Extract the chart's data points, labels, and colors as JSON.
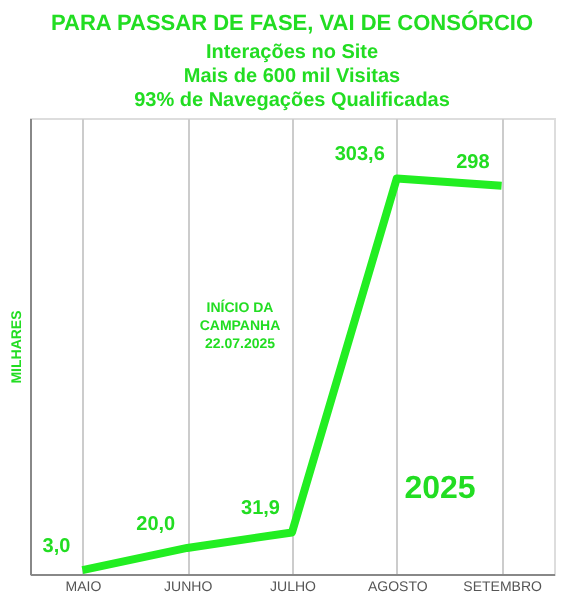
{
  "chart_data": {
    "type": "line",
    "title": "PARA PASSAR DE FASE, VAI DE CONSÓRCIO",
    "subtitle": [
      "Interações no Site",
      "Mais de 600 mil Visitas",
      "93% de Navegações Qualificadas"
    ],
    "ylabel": "MILHARES",
    "categories": [
      "MAIO",
      "JUNHO",
      "JULHO",
      "AGOSTO",
      "SETEMBRO"
    ],
    "series": [
      {
        "color": "#22ee22",
        "values": [
          3.0,
          20.0,
          31.9,
          303.6,
          298
        ],
        "value_labels": [
          "3,0",
          "20,0",
          "31,9",
          "303,6",
          "298"
        ]
      }
    ],
    "annotations": [
      "INÍCIO DA\nCAMPANHA\n22.07.2025",
      "2025"
    ],
    "grid": "x",
    "tick_labels": "x"
  }
}
